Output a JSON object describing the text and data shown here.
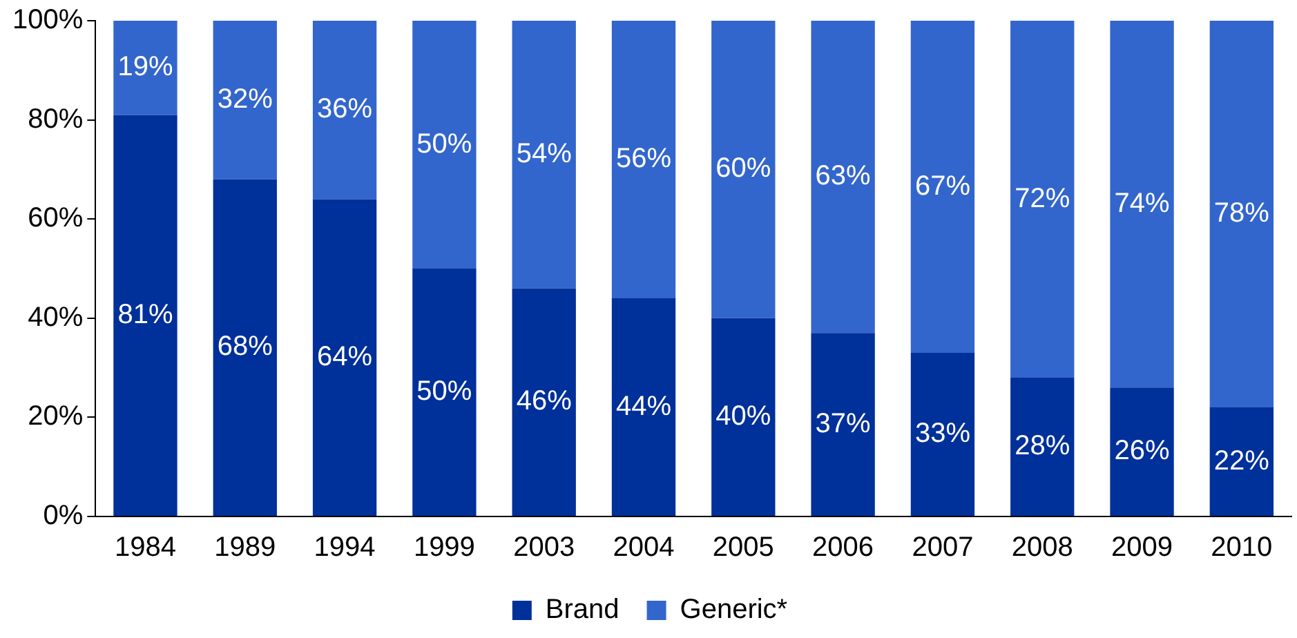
{
  "chart_data": {
    "type": "bar",
    "stacked": true,
    "categories": [
      "1984",
      "1989",
      "1994",
      "1999",
      "2003",
      "2004",
      "2005",
      "2006",
      "2007",
      "2008",
      "2009",
      "2010"
    ],
    "series": [
      {
        "name": "Brand",
        "color": "#00309a",
        "values": [
          81,
          68,
          64,
          50,
          46,
          44,
          40,
          37,
          33,
          28,
          26,
          22
        ],
        "value_labels": [
          "81%",
          "68%",
          "64%",
          "50%",
          "46%",
          "44%",
          "40%",
          "37%",
          "33%",
          "28%",
          "26%",
          "22%"
        ]
      },
      {
        "name": "Generic*",
        "color": "#3366cc",
        "values": [
          19,
          32,
          36,
          50,
          54,
          56,
          60,
          63,
          67,
          72,
          74,
          78
        ],
        "value_labels": [
          "19%",
          "32%",
          "36%",
          "50%",
          "54%",
          "56%",
          "60%",
          "63%",
          "67%",
          "72%",
          "74%",
          "78%"
        ]
      }
    ],
    "ylim": [
      0,
      100
    ],
    "yticks": [
      {
        "value": 0,
        "label": "0%"
      },
      {
        "value": 20,
        "label": "20%"
      },
      {
        "value": 40,
        "label": "40%"
      },
      {
        "value": 60,
        "label": "60%"
      },
      {
        "value": 80,
        "label": "80%"
      },
      {
        "value": 100,
        "label": "100%"
      }
    ],
    "grid": false,
    "legend": "bottom"
  }
}
